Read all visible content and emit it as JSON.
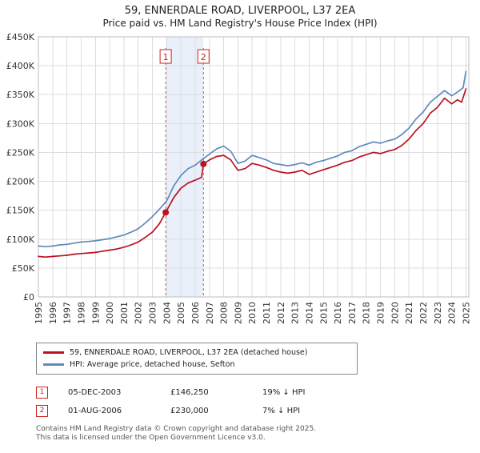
{
  "title": "59, ENNERDALE ROAD, LIVERPOOL, L37 2EA",
  "subtitle": "Price paid vs. HM Land Registry's House Price Index (HPI)",
  "chart_data": {
    "type": "line",
    "xlim": [
      1995,
      2025.2
    ],
    "ylim": [
      0,
      450000
    ],
    "x_ticks": [
      1995,
      1996,
      1997,
      1998,
      1999,
      2000,
      2001,
      2002,
      2003,
      2004,
      2005,
      2006,
      2007,
      2008,
      2009,
      2010,
      2011,
      2012,
      2013,
      2014,
      2015,
      2016,
      2017,
      2018,
      2019,
      2020,
      2021,
      2022,
      2023,
      2024,
      2025
    ],
    "y_ticks": [
      0,
      50000,
      100000,
      150000,
      200000,
      250000,
      300000,
      350000,
      400000,
      450000
    ],
    "y_tick_labels": [
      "£0",
      "£50K",
      "£100K",
      "£150K",
      "£200K",
      "£250K",
      "£300K",
      "£350K",
      "£400K",
      "£450K"
    ],
    "grid": true,
    "legend_position": "bottom",
    "band": [
      2003.93,
      2006.58
    ],
    "colors": {
      "property": "#bb1122",
      "hpi": "#6089bc",
      "band": "#e9f0fa",
      "sale_marker": "#cc2222",
      "sale_dashed": "#dd5555",
      "grid": "#dadde2",
      "border": "#b9bdc4"
    },
    "series": [
      {
        "name": "59, ENNERDALE ROAD, LIVERPOOL, L37 2EA (detached house)",
        "color": "#bb1122",
        "x": [
          1995,
          1995.5,
          1996,
          1996.5,
          1997,
          1997.5,
          1998,
          1998.5,
          1999,
          1999.5,
          2000,
          2000.5,
          2001,
          2001.5,
          2002,
          2002.5,
          2003,
          2003.5,
          2003.93,
          2004.5,
          2005,
          2005.5,
          2006,
          2006.45,
          2006.58,
          2007,
          2007.5,
          2008,
          2008.5,
          2009,
          2009.5,
          2010,
          2010.5,
          2011,
          2011.5,
          2012,
          2012.5,
          2013,
          2013.5,
          2014,
          2014.5,
          2015,
          2015.5,
          2016,
          2016.5,
          2017,
          2017.5,
          2018,
          2018.5,
          2019,
          2019.5,
          2020,
          2020.5,
          2021,
          2021.5,
          2022,
          2022.5,
          2023,
          2023.5,
          2024,
          2024.4,
          2024.7,
          2025
        ],
        "values": [
          70000,
          69000,
          70000,
          71000,
          72000,
          74000,
          75000,
          76000,
          77000,
          79000,
          81000,
          83000,
          86000,
          90000,
          95000,
          103000,
          112000,
          127000,
          146250,
          172000,
          188000,
          197000,
          202000,
          207000,
          230000,
          237000,
          243000,
          245000,
          237000,
          219000,
          222000,
          231000,
          228000,
          224000,
          219000,
          216000,
          214000,
          216000,
          219000,
          212000,
          216000,
          220000,
          224000,
          228000,
          233000,
          236000,
          242000,
          246000,
          250000,
          248000,
          252000,
          255000,
          262000,
          273000,
          288000,
          300000,
          318000,
          328000,
          344000,
          334000,
          341000,
          337000,
          360000
        ]
      },
      {
        "name": "HPI: Average price, detached house, Sefton",
        "color": "#6089bc",
        "x": [
          1995,
          1995.5,
          1996,
          1996.5,
          1997,
          1997.5,
          1998,
          1998.5,
          1999,
          1999.5,
          2000,
          2000.5,
          2001,
          2001.5,
          2002,
          2002.5,
          2003,
          2003.5,
          2004,
          2004.5,
          2005,
          2005.5,
          2006,
          2006.5,
          2007,
          2007.5,
          2008,
          2008.5,
          2009,
          2009.5,
          2010,
          2010.5,
          2011,
          2011.5,
          2012,
          2012.5,
          2013,
          2013.5,
          2014,
          2014.5,
          2015,
          2015.5,
          2016,
          2016.5,
          2017,
          2017.5,
          2018,
          2018.5,
          2019,
          2019.5,
          2020,
          2020.5,
          2021,
          2021.5,
          2022,
          2022.5,
          2023,
          2023.5,
          2024,
          2024.5,
          2024.8,
          2025
        ],
        "values": [
          88000,
          87000,
          88000,
          90000,
          91000,
          93000,
          95000,
          96000,
          97000,
          99000,
          101000,
          104000,
          107000,
          112000,
          118000,
          128000,
          139000,
          152000,
          166000,
          192000,
          210000,
          222000,
          228000,
          238000,
          247000,
          256000,
          261000,
          252000,
          231000,
          235000,
          245000,
          241000,
          237000,
          231000,
          229000,
          227000,
          229000,
          232000,
          228000,
          233000,
          236000,
          240000,
          244000,
          250000,
          253000,
          260000,
          264000,
          268000,
          266000,
          270000,
          273000,
          281000,
          292000,
          308000,
          320000,
          337000,
          347000,
          357000,
          348000,
          356000,
          362000,
          390000
        ]
      }
    ],
    "sales": [
      {
        "label": "1",
        "date": "05-DEC-2003",
        "x": 2003.93,
        "price": 146250,
        "price_label": "£146,250",
        "hpi_note": "19% ↓ HPI"
      },
      {
        "label": "2",
        "date": "01-AUG-2006",
        "x": 2006.58,
        "price": 230000,
        "price_label": "£230,000",
        "hpi_note": "7% ↓ HPI"
      }
    ]
  },
  "legend": {
    "items": [
      {
        "label": "59, ENNERDALE ROAD, LIVERPOOL, L37 2EA (detached house)",
        "color": "#bb1122"
      },
      {
        "label": "HPI: Average price, detached house, Sefton",
        "color": "#6089bc"
      }
    ]
  },
  "footer": {
    "line1": "Contains HM Land Registry data © Crown copyright and database right 2025.",
    "line2": "This data is licensed under the Open Government Licence v3.0."
  }
}
